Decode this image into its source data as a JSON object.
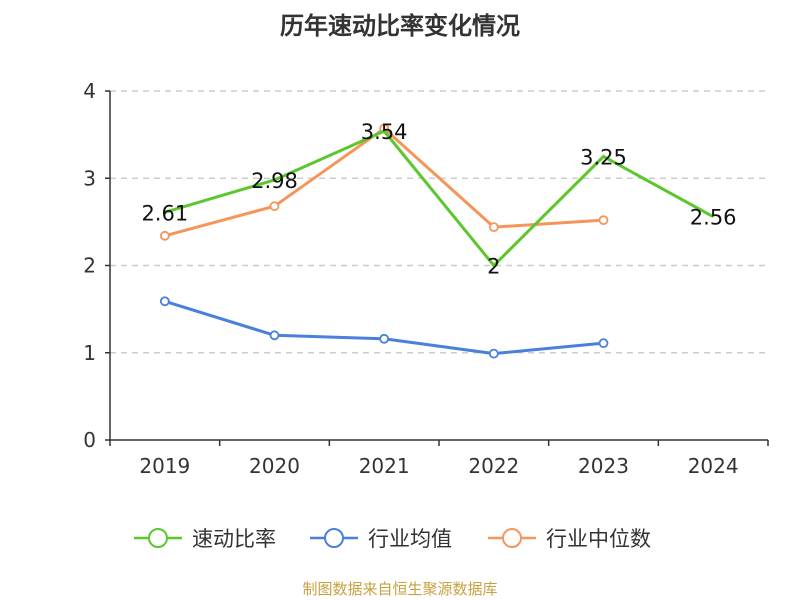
{
  "title": "历年速动比率变化情况",
  "source": "制图数据来自恒生聚源数据库",
  "chart_data": {
    "type": "line",
    "title": "历年速动比率变化情况",
    "x": [
      "2019",
      "2020",
      "2021",
      "2022",
      "2023",
      "2024"
    ],
    "ylim": [
      0,
      4
    ],
    "yticks": [
      0,
      1,
      2,
      3,
      4
    ],
    "grid": true,
    "legend_position": "bottom",
    "series": [
      {
        "name": "速动比率",
        "color": "#5cc72d",
        "values": [
          2.61,
          2.98,
          3.54,
          2.0,
          3.25,
          2.56
        ],
        "labels": [
          "2.61",
          "2.98",
          "3.54",
          "2",
          "3.25",
          "2.56"
        ]
      },
      {
        "name": "行业均值",
        "color": "#4a7fdb",
        "values": [
          1.59,
          1.2,
          1.16,
          0.99,
          1.11,
          null
        ]
      },
      {
        "name": "行业中位数",
        "color": "#f5955a",
        "values": [
          2.34,
          2.68,
          3.57,
          2.44,
          2.52,
          null
        ]
      }
    ]
  }
}
